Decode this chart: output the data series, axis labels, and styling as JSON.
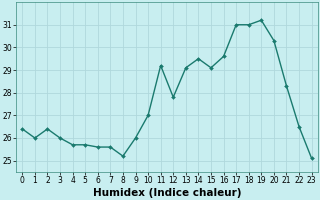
{
  "x": [
    0,
    1,
    2,
    3,
    4,
    5,
    6,
    7,
    8,
    9,
    10,
    11,
    12,
    13,
    14,
    15,
    16,
    17,
    18,
    19,
    20,
    21,
    22,
    23
  ],
  "y": [
    26.4,
    26.0,
    26.4,
    26.0,
    25.7,
    25.7,
    25.6,
    25.6,
    25.2,
    26.0,
    27.0,
    29.2,
    27.8,
    29.1,
    29.5,
    29.1,
    29.6,
    31.0,
    31.0,
    31.2,
    30.3,
    28.3,
    26.5,
    25.1
  ],
  "xlabel": "Humidex (Indice chaleur)",
  "ylim": [
    24.5,
    32.0
  ],
  "xlim": [
    -0.5,
    23.5
  ],
  "yticks": [
    25,
    26,
    27,
    28,
    29,
    30,
    31
  ],
  "xticks": [
    0,
    1,
    2,
    3,
    4,
    5,
    6,
    7,
    8,
    9,
    10,
    11,
    12,
    13,
    14,
    15,
    16,
    17,
    18,
    19,
    20,
    21,
    22,
    23
  ],
  "line_color": "#1a7a6e",
  "marker_color": "#1a7a6e",
  "bg_color": "#c8eef0",
  "grid_color": "#b0d8dc",
  "tick_label_fontsize": 5.5,
  "xlabel_fontsize": 7.5,
  "marker_size": 2.0,
  "line_width": 1.0
}
